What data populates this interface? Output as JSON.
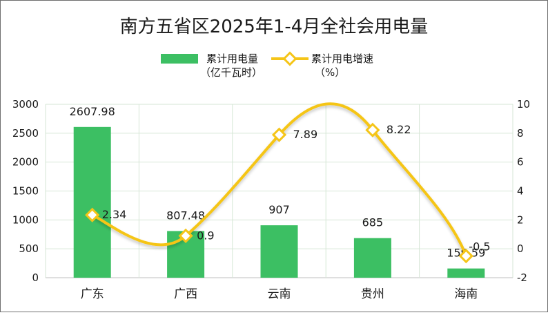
{
  "chart_data": {
    "type": "bar",
    "title": "南方五省区2025年1-4月全社会用电量",
    "categories": [
      "广东",
      "广西",
      "云南",
      "贵州",
      "海南"
    ],
    "series": [
      {
        "name": "累计用电量（亿千瓦时）",
        "name_lines": [
          "累计用电量",
          "（亿千瓦时）"
        ],
        "type": "bar",
        "axis": "left",
        "values": [
          2607.98,
          807.48,
          907,
          685,
          159.59
        ],
        "labels": [
          "2607.98",
          "807.48",
          "907",
          "685",
          "159.59"
        ]
      },
      {
        "name": "累计用电增速（%）",
        "name_lines": [
          "累计用电增速",
          "（%）"
        ],
        "type": "line",
        "axis": "right",
        "values": [
          2.34,
          0.9,
          7.89,
          8.22,
          -0.5
        ],
        "labels": [
          "2.34",
          "0.9",
          "7.89",
          "8.22",
          "-0.5"
        ]
      }
    ],
    "y_left": {
      "min": 0,
      "max": 3000,
      "ticks": [
        "0",
        "500",
        "1000",
        "1500",
        "2000",
        "2500",
        "3000"
      ]
    },
    "y_right": {
      "min": -2,
      "max": 10,
      "ticks": [
        "-2",
        "0",
        "2",
        "4",
        "6",
        "8",
        "10"
      ]
    },
    "grid": true,
    "legend": "top-center",
    "colors": {
      "bar": "#3cbf63",
      "line": "#f5c518",
      "marker_fill": "#ffffff",
      "grid": "#d6e6d6"
    }
  }
}
